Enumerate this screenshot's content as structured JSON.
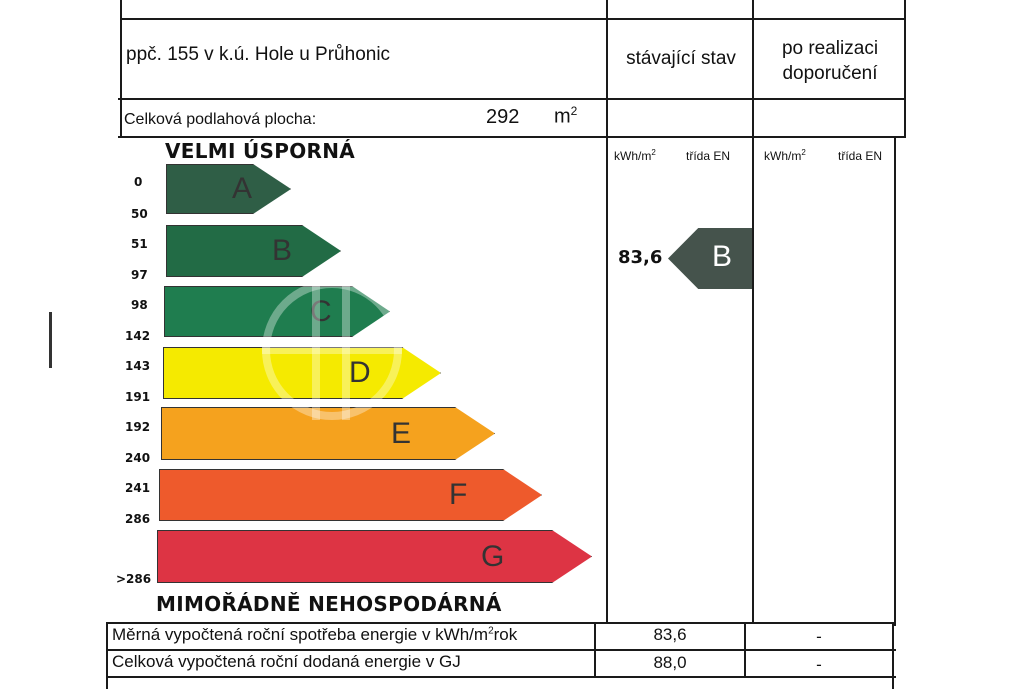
{
  "header": {
    "parcel": "ppč. 155 v k.ú. Hole u Průhonic",
    "col_current": "stávající stav",
    "col_after_line1": "po realizaci",
    "col_after_line2": "doporučení"
  },
  "area": {
    "label": "Celková podlahová plocha:",
    "value": "292",
    "unit": "m",
    "unit_sup": "2"
  },
  "units": {
    "kwh": "kWh/m",
    "kwh_sup": "2",
    "class_label": "třída EN"
  },
  "titles": {
    "top": "VELMI ÚSPORNÁ",
    "bottom": "MIMOŘÁDNĚ NEHOSPODÁRNÁ"
  },
  "scale_labels": [
    "0",
    "50",
    "51",
    "97",
    "98",
    "142",
    "143",
    "191",
    "192",
    "240",
    "241",
    "286",
    ">286"
  ],
  "bars": [
    {
      "letter": "A",
      "color": "#2f5e46"
    },
    {
      "letter": "B",
      "color": "#226b45"
    },
    {
      "letter": "C",
      "color": "#1f7d4f"
    },
    {
      "letter": "D",
      "color": "#f5ea00"
    },
    {
      "letter": "E",
      "color": "#f5a21e"
    },
    {
      "letter": "F",
      "color": "#ee5a2c"
    },
    {
      "letter": "G",
      "color": "#dd3444"
    }
  ],
  "current": {
    "value": "83,6",
    "class": "B",
    "marker_color": "#45534c"
  },
  "footer": {
    "row1_label": "Měrná vypočtená roční spotřeba energie v kWh/m",
    "row1_sup": "2",
    "row1_suffix": "rok",
    "row1_current": "83,6",
    "row1_after": "-",
    "row2_label": "Celková vypočtená roční dodaná energie v GJ",
    "row2_current": "88,0",
    "row2_after": "-"
  }
}
